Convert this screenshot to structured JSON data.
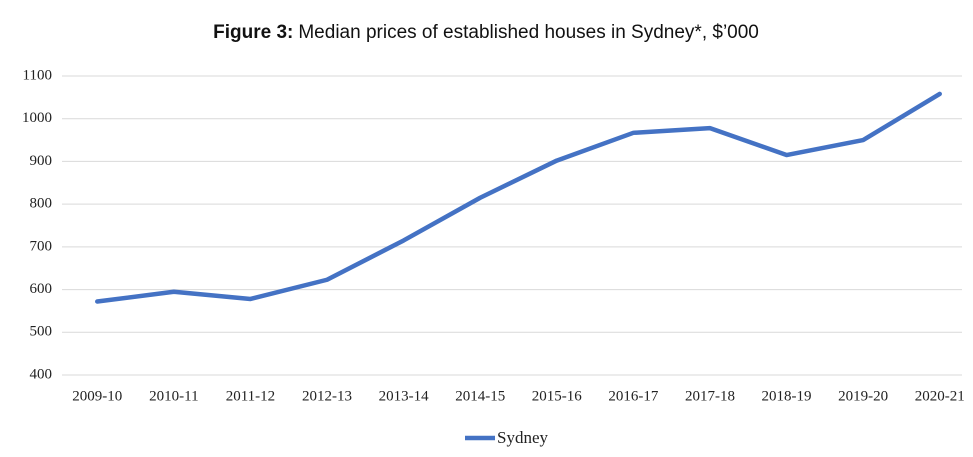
{
  "chart_data": {
    "type": "line",
    "title_label": "Figure 3:",
    "title": "Median prices of established houses in Sydney*, $’000",
    "categories": [
      "2009-10",
      "2010-11",
      "2011-12",
      "2012-13",
      "2013-14",
      "2014-15",
      "2015-16",
      "2016-17",
      "2017-18",
      "2018-19",
      "2019-20",
      "2020-21"
    ],
    "series": [
      {
        "name": "Sydney",
        "color": "#4472c4",
        "values": [
          572,
          595,
          578,
          623,
          715,
          815,
          902,
          967,
          978,
          915,
          950,
          1058
        ]
      }
    ],
    "ylim": [
      400,
      1100
    ],
    "yticks": [
      400,
      500,
      600,
      700,
      800,
      900,
      1000,
      1100
    ],
    "grid": true,
    "legend": "bottom"
  }
}
